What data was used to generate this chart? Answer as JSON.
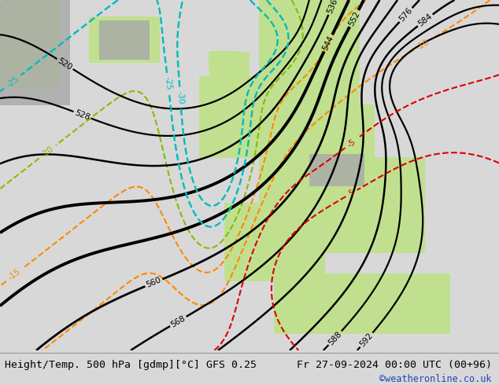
{
  "title_left": "Height/Temp. 500 hPa [gdmp][°C] GFS 0.25",
  "title_right": "Fr 27-09-2024 00:00 UTC (00+96)",
  "credit": "©weatheronline.co.uk",
  "bg_color": "#d8d8d8",
  "land_green": "#c0e090",
  "land_gray": "#a8a8a8",
  "height_color": "#000000",
  "temp_cyan": "#00bbbb",
  "temp_orange": "#ff8800",
  "temp_red": "#dd0000",
  "temp_green": "#88bb00",
  "bottom_bar_color": "#e8e8e8",
  "credit_color": "#2244bb",
  "caption_fontsize": 9.5,
  "credit_fontsize": 8.5
}
